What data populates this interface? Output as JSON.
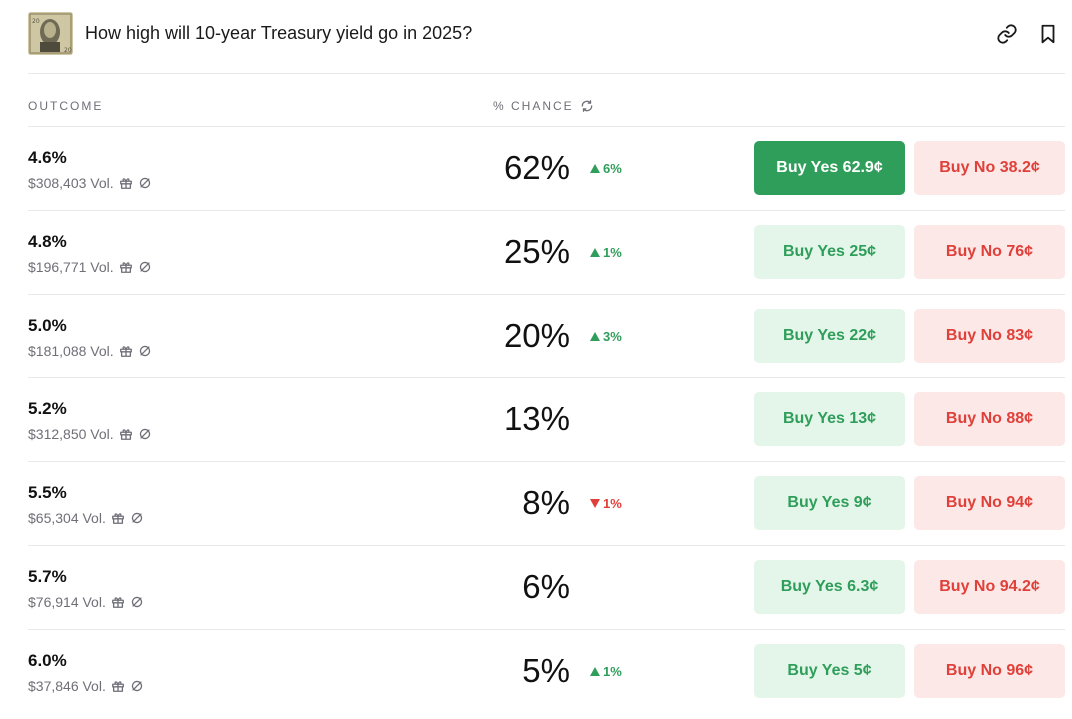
{
  "header": {
    "title": "How high will 10-year Treasury yield go in 2025?"
  },
  "columns": {
    "outcome": "OUTCOME",
    "chance": "% CHANCE"
  },
  "colors": {
    "green": "#2f9e5a",
    "green_light": "#e4f6ea",
    "red": "#e0403a",
    "red_light": "#fbe8e7"
  },
  "rows": [
    {
      "outcome": "4.6%",
      "volume": "$308,403 Vol.",
      "chance": "62%",
      "delta": "6%",
      "direction": "up",
      "yes": "Buy Yes 62.9¢",
      "no": "Buy No 38.2¢"
    },
    {
      "outcome": "4.8%",
      "volume": "$196,771 Vol.",
      "chance": "25%",
      "delta": "1%",
      "direction": "up",
      "yes": "Buy Yes 25¢",
      "no": "Buy No 76¢"
    },
    {
      "outcome": "5.0%",
      "volume": "$181,088 Vol.",
      "chance": "20%",
      "delta": "3%",
      "direction": "up",
      "yes": "Buy Yes 22¢",
      "no": "Buy No 83¢"
    },
    {
      "outcome": "5.2%",
      "volume": "$312,850 Vol.",
      "chance": "13%",
      "delta": "",
      "direction": "none",
      "yes": "Buy Yes 13¢",
      "no": "Buy No 88¢"
    },
    {
      "outcome": "5.5%",
      "volume": "$65,304 Vol.",
      "chance": "8%",
      "delta": "1%",
      "direction": "down",
      "yes": "Buy Yes 9¢",
      "no": "Buy No 94¢"
    },
    {
      "outcome": "5.7%",
      "volume": "$76,914 Vol.",
      "chance": "6%",
      "delta": "",
      "direction": "none",
      "yes": "Buy Yes 6.3¢",
      "no": "Buy No 94.2¢"
    },
    {
      "outcome": "6.0%",
      "volume": "$37,846 Vol.",
      "chance": "5%",
      "delta": "1%",
      "direction": "up",
      "yes": "Buy Yes 5¢",
      "no": "Buy No 96¢"
    }
  ]
}
